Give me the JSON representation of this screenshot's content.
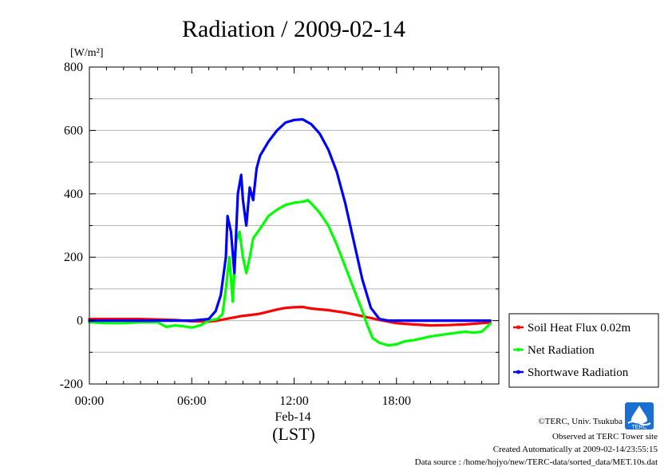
{
  "chart_data": {
    "type": "line",
    "title": "Radiation / 2009-02-14",
    "ylabel_unit": "[W/m²]",
    "xlabel_date": "Feb-14",
    "xlabel_tz": "(LST)",
    "ylim": [
      -200,
      800
    ],
    "xlim_hours": [
      0,
      24
    ],
    "y_ticks": [
      -200,
      0,
      200,
      400,
      600,
      800
    ],
    "y_tick_labels": [
      "-200",
      "0",
      "200",
      "400",
      "600",
      "800"
    ],
    "x_ticks_hours": [
      0,
      6,
      12,
      18
    ],
    "x_tick_labels": [
      "00:00",
      "06:00",
      "12:00",
      "18:00"
    ],
    "grid": true,
    "legend_position": "right",
    "series": [
      {
        "name": "Soil Heat Flux 0.02m",
        "color": "#ff0000",
        "x": [
          0,
          3,
          5,
          6,
          7,
          7.5,
          8,
          8.5,
          9,
          9.5,
          10,
          11,
          11.5,
          12,
          12.5,
          13,
          14,
          15,
          16,
          17,
          17.5,
          18,
          19,
          20,
          21,
          22,
          23,
          23.5
        ],
        "y": [
          5,
          5,
          2,
          -2,
          -3,
          0,
          5,
          10,
          15,
          18,
          22,
          35,
          40,
          42,
          43,
          38,
          33,
          25,
          14,
          2,
          -3,
          -8,
          -12,
          -15,
          -14,
          -12,
          -8,
          -6
        ]
      },
      {
        "name": "Net Radiation",
        "color": "#00ff00",
        "x": [
          0,
          1,
          2,
          3,
          4,
          4.5,
          5,
          5.5,
          6,
          6.5,
          7,
          7.5,
          7.8,
          8,
          8.2,
          8.4,
          8.6,
          8.8,
          9,
          9.2,
          9.4,
          9.6,
          10,
          10.5,
          11,
          11.5,
          12,
          12.5,
          12.8,
          13,
          13.5,
          14,
          14.5,
          15,
          15.5,
          16,
          16.3,
          16.6,
          17,
          17.5,
          18,
          18.5,
          19,
          20,
          21,
          22,
          22.5,
          23,
          23.3,
          23.5
        ],
        "y": [
          -5,
          -8,
          -8,
          -5,
          -5,
          -20,
          -15,
          -18,
          -22,
          -15,
          0,
          5,
          20,
          100,
          200,
          60,
          250,
          280,
          200,
          150,
          200,
          260,
          290,
          330,
          350,
          365,
          372,
          375,
          380,
          370,
          340,
          300,
          240,
          170,
          100,
          30,
          -15,
          -55,
          -70,
          -78,
          -75,
          -65,
          -62,
          -50,
          -42,
          -35,
          -38,
          -35,
          -20,
          -10
        ]
      },
      {
        "name": "Shortwave Radiation",
        "color": "#0000ff",
        "x": [
          0,
          1,
          2,
          3,
          4,
          5,
          6,
          7,
          7.4,
          7.7,
          8,
          8.1,
          8.3,
          8.5,
          8.7,
          8.9,
          9,
          9.2,
          9.4,
          9.6,
          9.8,
          10,
          10.5,
          11,
          11.5,
          12,
          12.5,
          13,
          13.5,
          14,
          14.5,
          15,
          15.5,
          16,
          16.5,
          17,
          17.5,
          18,
          19,
          20,
          21,
          22,
          23,
          23.5
        ],
        "y": [
          0,
          0,
          0,
          0,
          0,
          0,
          0,
          5,
          30,
          80,
          200,
          330,
          280,
          150,
          400,
          460,
          380,
          300,
          420,
          380,
          480,
          520,
          565,
          600,
          625,
          633,
          635,
          620,
          590,
          540,
          470,
          370,
          250,
          130,
          40,
          5,
          0,
          0,
          0,
          0,
          0,
          0,
          0,
          0
        ]
      }
    ]
  },
  "credits": {
    "line1": "©TERC, Univ. Tsukuba",
    "line2": "Observed at TERC Tower site",
    "line3": "Created Automatically at 2009-02-14/23:55:15",
    "line4": "Data source : /home/hojyo/new/TERC-data/sorted_data/MET.10s.dat"
  },
  "logo": {
    "text": "TERC",
    "color": "#1a6fd0"
  }
}
